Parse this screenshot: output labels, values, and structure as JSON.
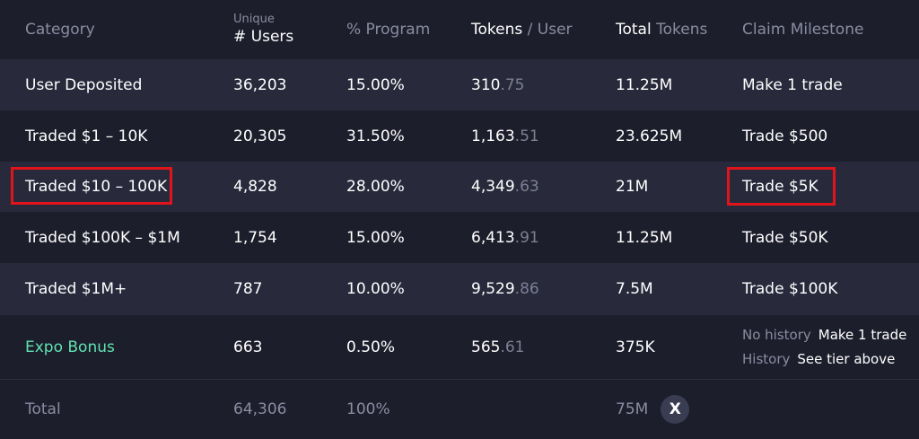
{
  "header": {
    "category": "Category",
    "users_small": "Unique",
    "users_main": "# Users",
    "program": "% Program",
    "tokens_user_a": "Tokens",
    "tokens_user_b": " / User",
    "total_tokens_a": "Total",
    "total_tokens_b": " Tokens",
    "milestone": "Claim Milestone"
  },
  "rows": [
    {
      "category": "User Deposited",
      "users": "36,203",
      "program": "15.00%",
      "tpu_int": "310",
      "tpu_dec": ".75",
      "total": "11.25M",
      "milestone": "Make 1 trade"
    },
    {
      "category": "Traded $1 – 10K",
      "users": "20,305",
      "program": "31.50%",
      "tpu_int": "1,163",
      "tpu_dec": ".51",
      "total": "23.625M",
      "milestone": "Trade $500"
    },
    {
      "category": "Traded $10 – 100K",
      "users": "4,828",
      "program": "28.00%",
      "tpu_int": "4,349",
      "tpu_dec": ".63",
      "total": "21M",
      "milestone": "Trade $5K"
    },
    {
      "category": "Traded $100K – $1M",
      "users": "1,754",
      "program": "15.00%",
      "tpu_int": "6,413",
      "tpu_dec": ".91",
      "total": "11.25M",
      "milestone": "Trade $50K"
    },
    {
      "category": "Traded $1M+",
      "users": "787",
      "program": "10.00%",
      "tpu_int": "9,529",
      "tpu_dec": ".86",
      "total": "7.5M",
      "milestone": "Trade $100K"
    },
    {
      "category": "Expo Bonus",
      "users": "663",
      "program": "0.50%",
      "tpu_int": "565",
      "tpu_dec": ".61",
      "total": "375K",
      "milestone_lines": [
        {
          "label": "No history",
          "value": "Make 1 trade"
        },
        {
          "label": "History",
          "value": "See tier above"
        }
      ]
    }
  ],
  "total": {
    "label": "Total",
    "users": "64,306",
    "program": "100%",
    "tokens": "75M",
    "token_symbol": "X"
  },
  "colors": {
    "background": "#1d1e2c",
    "row_alt": "#282a3c",
    "highlight": "#e0141a",
    "bonus_green": "#5fe3b0"
  }
}
